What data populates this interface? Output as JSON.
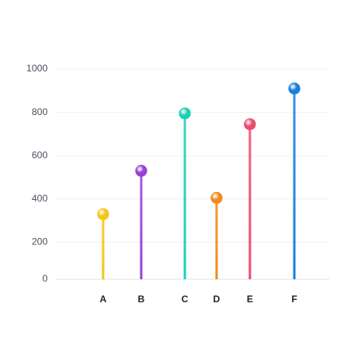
{
  "chart_data": {
    "type": "lollipop",
    "categories": [
      "A",
      "B",
      "C",
      "D",
      "E",
      "F"
    ],
    "series": [
      {
        "values": [
          330,
          530,
          795,
          405,
          745,
          910
        ],
        "colors": [
          "#f5c518",
          "#9b3fd6",
          "#1ccfb8",
          "#f28a1a",
          "#ee4a6e",
          "#1a7fe0"
        ]
      }
    ],
    "ylim": [
      0,
      1000
    ],
    "yticks": [
      0,
      200,
      400,
      600,
      800,
      1000
    ],
    "grid": true
  }
}
